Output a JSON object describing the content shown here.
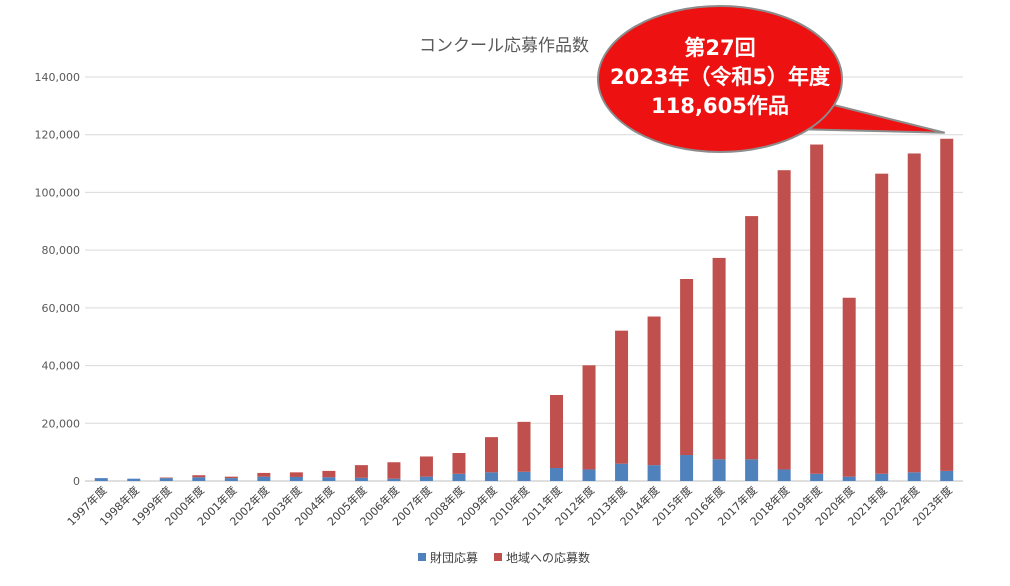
{
  "chart_data": {
    "type": "bar",
    "stacked": true,
    "title": "コンクール応募作品数",
    "categories": [
      "1997年度",
      "1998年度",
      "1999年度",
      "2000年度",
      "2001年度",
      "2002年度",
      "2003年度",
      "2004年度",
      "2005年度",
      "2006年度",
      "2007年度",
      "2008年度",
      "2009年度",
      "2010年度",
      "2011年度",
      "2012年度",
      "2013年度",
      "2014年度",
      "2015年度",
      "2016年度",
      "2017年度",
      "2018年度",
      "2019年度",
      "2020年度",
      "2021年度",
      "2022年度",
      "2023年度"
    ],
    "series": [
      {
        "name": "財団応募",
        "color": "#4f81bd",
        "values": [
          1000,
          800,
          1000,
          1300,
          1000,
          1500,
          1400,
          1300,
          1100,
          800,
          1500,
          2500,
          3000,
          3200,
          4500,
          4000,
          6000,
          5500,
          9000,
          7500,
          7500,
          4000,
          2500,
          1500,
          2500,
          3000,
          3500
        ]
      },
      {
        "name": "地域への応募数",
        "color": "#c0504d",
        "values": [
          0,
          0,
          200,
          700,
          500,
          1300,
          1600,
          2200,
          4400,
          5700,
          7000,
          7200,
          12200,
          17300,
          25300,
          36100,
          46100,
          51500,
          61000,
          69800,
          84300,
          103700,
          114100,
          62000,
          104000,
          110500,
          115105
        ]
      }
    ],
    "ylim": [
      0,
      140000
    ],
    "yticks": [
      "0",
      "20,000",
      "40,000",
      "60,000",
      "80,000",
      "100,000",
      "120,000",
      "140,000"
    ],
    "grid": true,
    "legend": "bottom",
    "callout": {
      "lines": [
        "第27回",
        "2023年（令和5）年度",
        "118,605作品"
      ],
      "color": "#ee1111",
      "target_category": "2023年度"
    }
  }
}
